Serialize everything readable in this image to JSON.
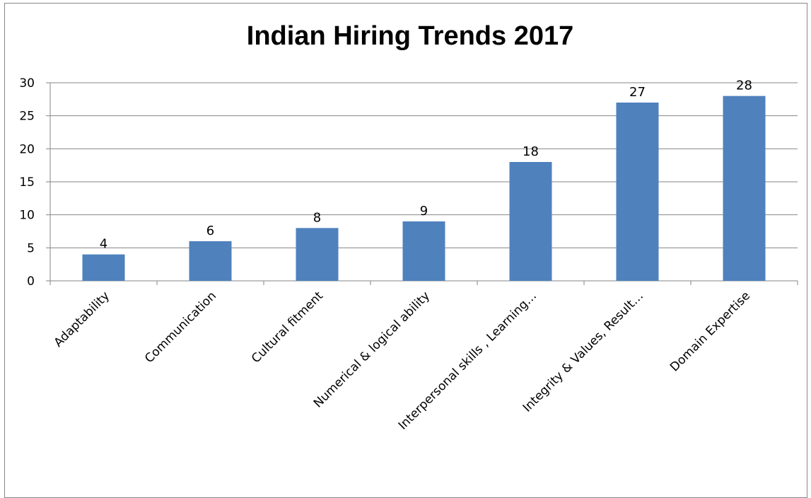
{
  "chart_data": {
    "type": "bar",
    "title": "Indian Hiring Trends 2017",
    "xlabel": "",
    "ylabel": "",
    "categories": [
      "Adaptability",
      "Communication",
      "Cultural fitment",
      "Numerical & logical ability",
      "Interpersonal skills , Learning…",
      "Integrity & Values, Result…",
      "Domain Expertise"
    ],
    "values": [
      4,
      6,
      8,
      9,
      18,
      27,
      28
    ],
    "ylim": [
      0,
      30
    ],
    "yticks": [
      0,
      5,
      10,
      15,
      20,
      25,
      30
    ],
    "grid": true,
    "legend": "none",
    "colors": {
      "bar": "#4F81BD",
      "grid": "#868686",
      "axis": "#868686"
    }
  }
}
